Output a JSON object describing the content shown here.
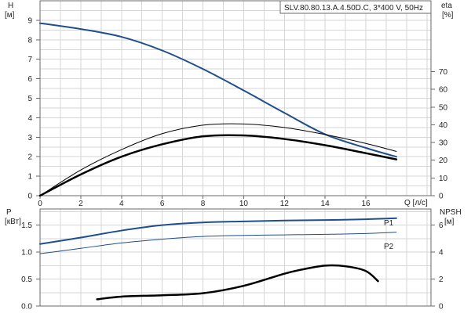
{
  "title": "SLV.80.80.13.A.4.50D.C, 3*400 V, 50Hz",
  "colors": {
    "blue": "#1f4e8c",
    "black": "#000000"
  },
  "chart_data": [
    {
      "type": "line",
      "panel": "top",
      "left_axis": {
        "label": "H",
        "unit": "[м]",
        "ticks": [
          "0",
          "1",
          "2",
          "3",
          "4",
          "5",
          "6",
          "7",
          "8",
          "9"
        ],
        "range": [
          0,
          10
        ]
      },
      "right_axis": {
        "label": "eta",
        "unit": "[%]",
        "ticks": [
          "0",
          "10",
          "20",
          "30",
          "40",
          "50",
          "60",
          "70"
        ],
        "range": [
          0,
          110
        ]
      },
      "x_axis": {
        "label": "Q [л/с]",
        "ticks": [
          "0",
          "2",
          "4",
          "6",
          "8",
          "10",
          "12",
          "14",
          "16"
        ],
        "range": [
          0,
          19.2
        ]
      },
      "grid": true,
      "series": [
        {
          "axis": "left",
          "color": "#1f4e8c",
          "width": 2,
          "x": [
            0,
            2,
            4,
            6,
            8,
            10,
            12,
            14,
            16,
            17.5
          ],
          "y": [
            8.85,
            8.55,
            8.15,
            7.45,
            6.5,
            5.4,
            4.25,
            3.15,
            2.45,
            2.0
          ]
        },
        {
          "axis": "right",
          "color": "#000000",
          "width": 1,
          "x": [
            0,
            2,
            4,
            6,
            8,
            10,
            12,
            14,
            16,
            17.5
          ],
          "y": [
            0,
            14.5,
            26,
            35,
            39.8,
            40.5,
            38.5,
            34.5,
            29.5,
            25
          ]
        },
        {
          "axis": "right",
          "color": "#000000",
          "width": 2.5,
          "x": [
            0,
            2,
            4,
            6,
            8,
            10,
            12,
            14,
            16,
            17.5
          ],
          "y": [
            0,
            12,
            22,
            29,
            33.5,
            34,
            32,
            28.5,
            24,
            20.5
          ]
        }
      ]
    },
    {
      "type": "line",
      "panel": "bottom",
      "left_axis": {
        "label": "P",
        "unit": "[кВт]",
        "ticks": [
          "0.0",
          "0.5",
          "1.0",
          "1.5"
        ],
        "range": [
          0,
          1.8
        ]
      },
      "right_axis": {
        "label": "NPSH",
        "unit": "[м]",
        "ticks": [
          "0",
          "2",
          "4",
          "6"
        ],
        "range": [
          0,
          7.2
        ]
      },
      "x_range": [
        0,
        19.2
      ],
      "grid": true,
      "series": [
        {
          "name": "P1",
          "axis": "left",
          "color": "#1f4e8c",
          "width": 2,
          "x": [
            0,
            2,
            4,
            6,
            8,
            10,
            12,
            14,
            16,
            17.5
          ],
          "y": [
            1.15,
            1.27,
            1.4,
            1.5,
            1.55,
            1.57,
            1.585,
            1.595,
            1.61,
            1.63
          ]
        },
        {
          "name": "P2",
          "axis": "left",
          "color": "#1f4e8c",
          "width": 1,
          "x": [
            0,
            2,
            4,
            6,
            8,
            10,
            12,
            14,
            16,
            17.5
          ],
          "y": [
            0.97,
            1.07,
            1.17,
            1.24,
            1.29,
            1.31,
            1.32,
            1.33,
            1.345,
            1.37
          ]
        },
        {
          "axis": "right",
          "color": "#000000",
          "width": 2.5,
          "x": [
            2.8,
            4,
            6,
            8,
            10,
            12,
            13,
            14,
            15,
            16,
            16.6
          ],
          "y": [
            0.5,
            0.7,
            0.8,
            0.95,
            1.5,
            2.4,
            2.75,
            3.0,
            2.95,
            2.6,
            1.85
          ]
        }
      ]
    }
  ]
}
